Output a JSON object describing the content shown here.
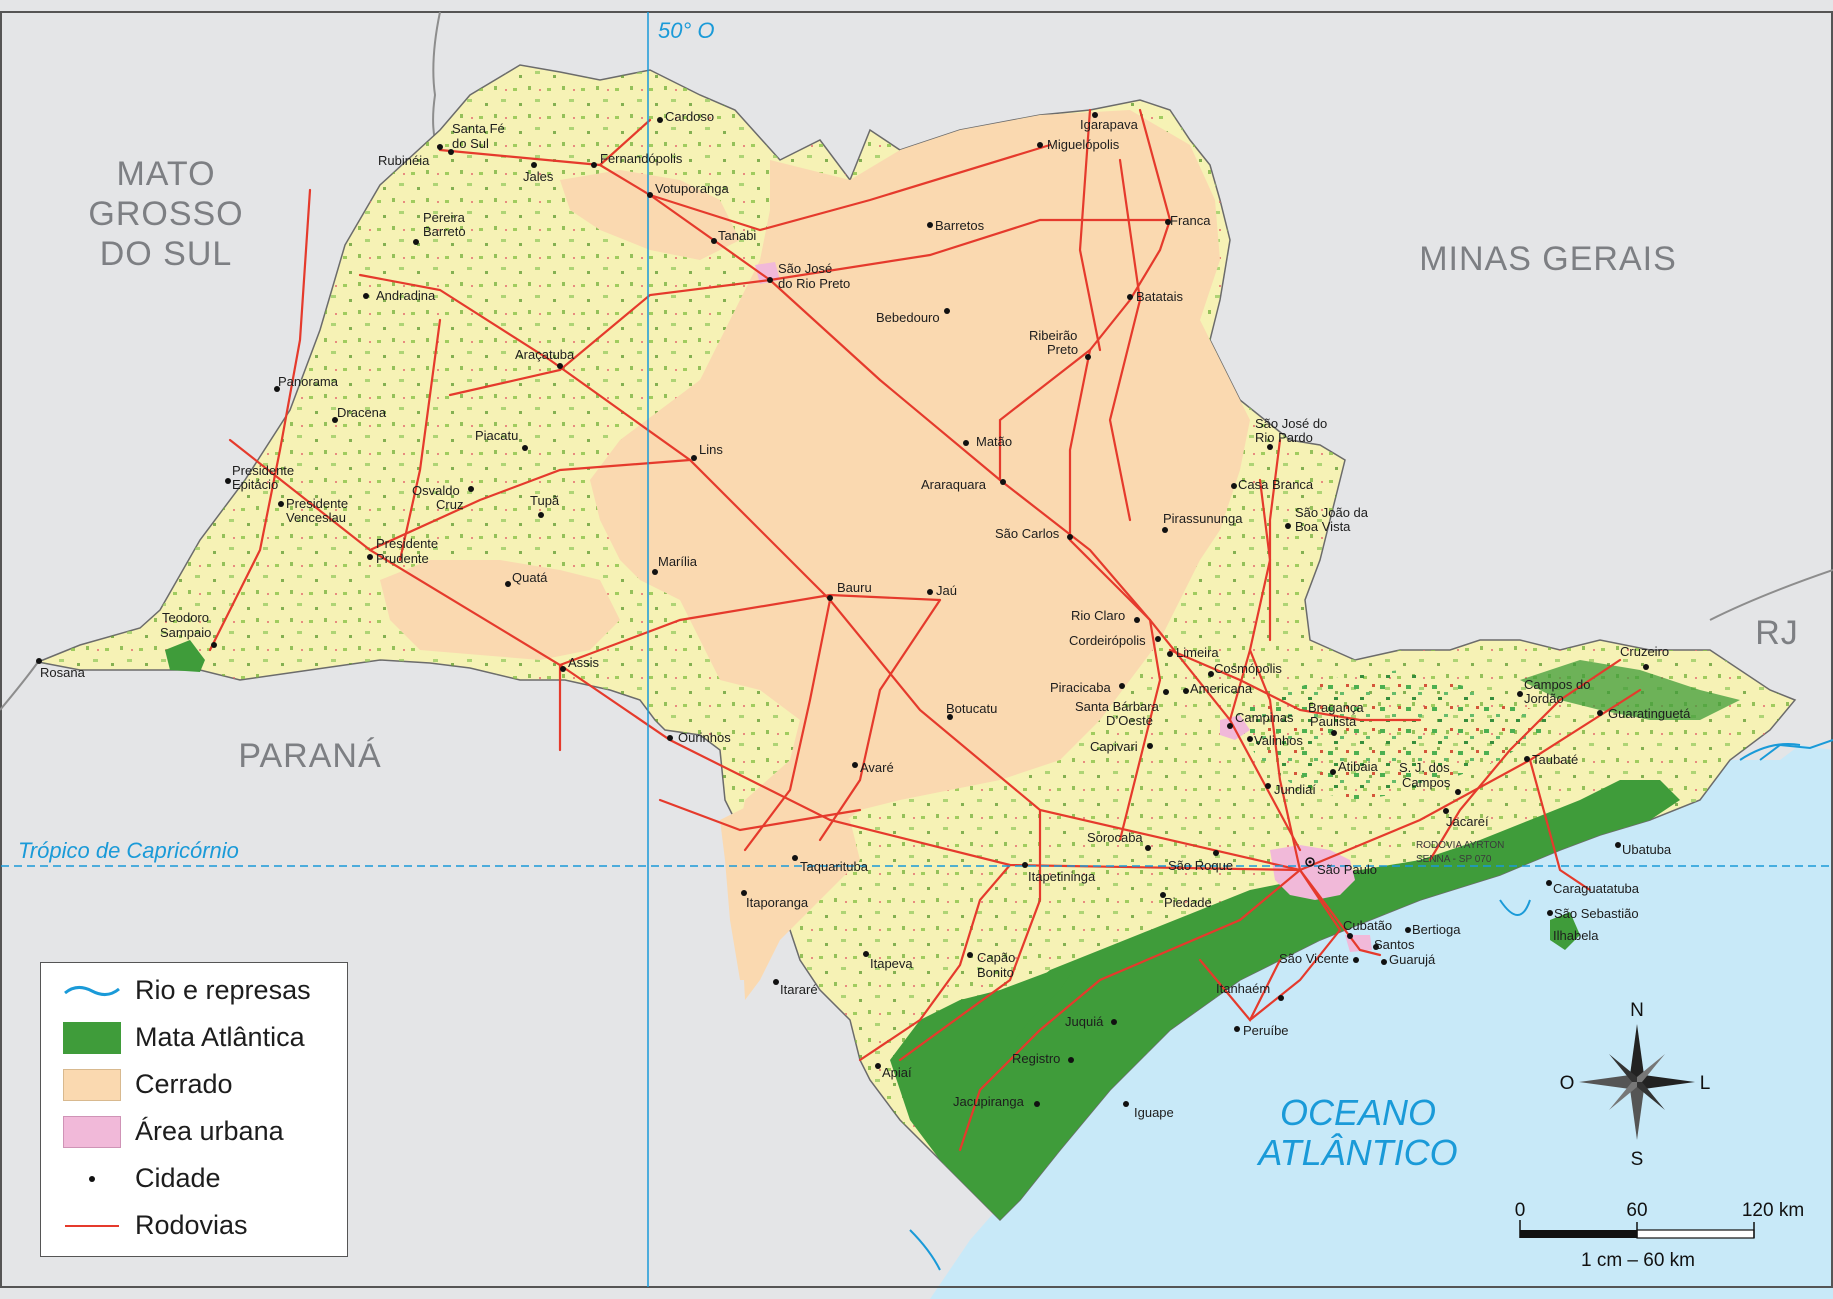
{
  "colors": {
    "background": "#e4e5e7",
    "ocean": "#c8e9f8",
    "cerrado": "#fad9b0",
    "mata_base": "#f6f2b5",
    "mata_atlantica": "#3f9c3a",
    "urban": "#f1b9d9",
    "road": "#e53a2c",
    "river": "#1a9ad8",
    "border": "#555"
  },
  "regions": {
    "mato_grosso_line1": "MATO",
    "mato_grosso_line2": "GROSSO",
    "mato_grosso_line3": "DO SUL",
    "minas": "MINAS GERAIS",
    "parana": "PARANÁ",
    "rj": "RJ",
    "ocean_line1": "OCEANO",
    "ocean_line2": "ATLÂNTICO"
  },
  "lines": {
    "meridian": "50° O",
    "tropic": "Trópico de Capricórnio"
  },
  "road_label_1": "RODOVIA AYRTON",
  "road_label_2": "SENNA - SP 070",
  "compass": {
    "n": "N",
    "s": "S",
    "o": "O",
    "l": "L"
  },
  "scale": {
    "t0": "0",
    "t1": "60",
    "t2": "120 km",
    "ratio": "1 cm – 60 km"
  },
  "legend": {
    "rios": "Rio e represas",
    "mata": "Mata Atlântica",
    "cerrado": "Cerrado",
    "urbana": "Área urbana",
    "cidade": "Cidade",
    "rodovias": "Rodovias"
  },
  "cities": {
    "santa_fe_1": "Santa Fé",
    "santa_fe_2": "do Sul",
    "rubineia": "Rubinéia",
    "jales": "Jales",
    "fernandopolis": "Fernandópolis",
    "cardoso": "Cardoso",
    "votuporanga": "Votuporanga",
    "pereira_1": "Pereira",
    "pereira_2": "Barreto",
    "tanabi": "Tanabi",
    "sjrp_1": "São José",
    "sjrp_2": "do Rio Preto",
    "andradina": "Andradina",
    "aracatuba": "Araçatuba",
    "panorama": "Panorama",
    "dracena": "Dracena",
    "piacatu": "Piacatu",
    "epit_1": "Presidente",
    "epit_2": "Epitácio",
    "venc_1": "Presidente",
    "venc_2": "Venceslau",
    "osvaldo_1": "Osvaldo",
    "osvaldo_2": "Cruz",
    "tupa": "Tupã",
    "lins": "Lins",
    "prud_1": "Presidente",
    "prud_2": "Prudente",
    "marilia": "Marília",
    "quata": "Quatá",
    "teod_1": "Teodoro",
    "teod_2": "Sampaio",
    "rosana": "Rosana",
    "assis": "Assis",
    "ourinhos": "Ourinhos",
    "bauru": "Bauru",
    "jau": "Jaú",
    "botucatu": "Botucatu",
    "avare": "Avaré",
    "taquarituba": "Taquarituba",
    "itaporanga": "Itaporanga",
    "itapeva": "Itapeva",
    "itarare": "Itararé",
    "capao_1": "Capão",
    "capao_2": "Bonito",
    "itapetininga": "Itapetininga",
    "apiai": "Apiaí",
    "igarapava": "Igarapava",
    "miguelopolis": "Miguelópolis",
    "barretos": "Barretos",
    "franca": "Franca",
    "batatais": "Batatais",
    "bebedouro": "Bebedouro",
    "rp_1": "Ribeirão",
    "rp_2": "Preto",
    "matao": "Matão",
    "araraquara": "Araraquara",
    "sao_carlos": "São Carlos",
    "rio_claro": "Rio Claro",
    "cordeiropolis": "Cordeirópolis",
    "limeira": "Limeira",
    "cosmopolis": "Cosmópolis",
    "piracicaba": "Piracicaba",
    "americana": "Americana",
    "sbo_1": "Santa Bárbara",
    "sbo_2": "D’Oeste",
    "campinas": "Campinas",
    "valinhos": "Valinhos",
    "capivari": "Capivari",
    "braganca_1": "Bragança",
    "braganca_2": "Paulista",
    "atibaia": "Atibaia",
    "jundiai": "Jundiaí",
    "sorocaba": "Sorocaba",
    "sao_roque": "São Roque",
    "sao_paulo": "São Paulo",
    "piedade": "Piedade",
    "cubatao": "Cubatão",
    "santos": "Santos",
    "sao_vicente": "São Vicente",
    "guaruja": "Guarujá",
    "bertioga": "Bertioga",
    "itanhaem": "Itanhaém",
    "peruibe": "Peruíbe",
    "juquia": "Juquiá",
    "registro": "Registro",
    "jacupiranga": "Jacupiranga",
    "iguape": "Iguape",
    "sjrpardo_1": "São José do",
    "sjrpardo_2": "Rio Pardo",
    "casa_branca": "Casa Branca",
    "sjbv_1": "São João da",
    "sjbv_2": "Boa Vista",
    "pirassununga": "Pirassununga",
    "sjc_1": "S. J. dos",
    "sjc_2": "Campos",
    "jacarei": "Jacareí",
    "taubate": "Taubaté",
    "guaratingueta": "Guaratinguetá",
    "cruzeiro": "Cruzeiro",
    "cdj_1": "Campos do",
    "cdj_2": "Jordão",
    "ubatuba": "Ubatuba",
    "caraguatatuba": "Caraguatatuba",
    "sao_sebastiao": "São Sebastião",
    "ilhabela": "Ilhabela"
  }
}
